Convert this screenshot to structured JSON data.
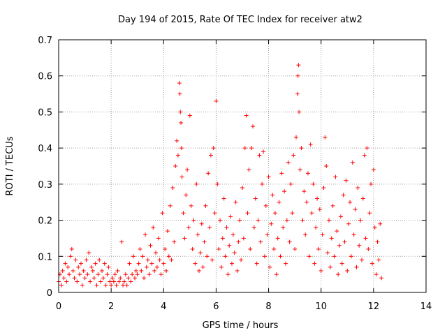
{
  "chart_data": {
    "type": "scatter",
    "title": "Day 194 of 2015, Rate Of TEC Index for receiver atw2",
    "xlabel": "GPS time / hours",
    "ylabel": "ROTI / TECUs",
    "xlim": [
      0,
      14
    ],
    "ylim": [
      0,
      0.7
    ],
    "x_ticks": [
      "0",
      "2",
      "4",
      "6",
      "8",
      "10",
      "12",
      "14"
    ],
    "y_ticks": [
      "0",
      "0.1",
      "0.2",
      "0.3",
      "0.4",
      "0.5",
      "0.6",
      "0.7"
    ],
    "x_tick_values": [
      0,
      2,
      4,
      6,
      8,
      10,
      12,
      14
    ],
    "y_tick_values": [
      0,
      0.1,
      0.2,
      0.3,
      0.4,
      0.5,
      0.6,
      0.7
    ],
    "grid": true,
    "marker": "+",
    "marker_color": "#ff0000",
    "series": [
      {
        "points": [
          [
            0.0,
            0.03
          ],
          [
            0.05,
            0.05
          ],
          [
            0.1,
            0.02
          ],
          [
            0.15,
            0.06
          ],
          [
            0.2,
            0.04
          ],
          [
            0.25,
            0.08
          ],
          [
            0.3,
            0.03
          ],
          [
            0.35,
            0.07
          ],
          [
            0.4,
            0.05
          ],
          [
            0.45,
            0.1
          ],
          [
            0.5,
            0.12
          ],
          [
            0.55,
            0.06
          ],
          [
            0.6,
            0.04
          ],
          [
            0.65,
            0.09
          ],
          [
            0.7,
            0.03
          ],
          [
            0.75,
            0.07
          ],
          [
            0.8,
            0.05
          ],
          [
            0.85,
            0.08
          ],
          [
            0.9,
            0.02
          ],
          [
            0.95,
            0.06
          ],
          [
            1.0,
            0.04
          ],
          [
            1.05,
            0.09
          ],
          [
            1.1,
            0.05
          ],
          [
            1.15,
            0.11
          ],
          [
            1.2,
            0.03
          ],
          [
            1.25,
            0.07
          ],
          [
            1.3,
            0.06
          ],
          [
            1.35,
            0.04
          ],
          [
            1.4,
            0.08
          ],
          [
            1.45,
            0.02
          ],
          [
            1.5,
            0.05
          ],
          [
            1.55,
            0.09
          ],
          [
            1.6,
            0.03
          ],
          [
            1.65,
            0.06
          ],
          [
            1.7,
            0.04
          ],
          [
            1.75,
            0.08
          ],
          [
            1.8,
            0.02
          ],
          [
            1.85,
            0.05
          ],
          [
            1.9,
            0.07
          ],
          [
            1.95,
            0.03
          ],
          [
            2.0,
            0.02
          ],
          [
            2.05,
            0.04
          ],
          [
            2.1,
            0.03
          ],
          [
            2.15,
            0.05
          ],
          [
            2.2,
            0.02
          ],
          [
            2.25,
            0.06
          ],
          [
            2.3,
            0.03
          ],
          [
            2.35,
            0.04
          ],
          [
            2.4,
            0.14
          ],
          [
            2.45,
            0.02
          ],
          [
            2.5,
            0.03
          ],
          [
            2.55,
            0.05
          ],
          [
            2.6,
            0.02
          ],
          [
            2.65,
            0.04
          ],
          [
            2.7,
            0.08
          ],
          [
            2.75,
            0.03
          ],
          [
            2.8,
            0.05
          ],
          [
            2.85,
            0.1
          ],
          [
            2.9,
            0.04
          ],
          [
            2.95,
            0.06
          ],
          [
            3.0,
            0.05
          ],
          [
            3.05,
            0.08
          ],
          [
            3.1,
            0.12
          ],
          [
            3.15,
            0.06
          ],
          [
            3.2,
            0.1
          ],
          [
            3.25,
            0.04
          ],
          [
            3.3,
            0.16
          ],
          [
            3.35,
            0.07
          ],
          [
            3.4,
            0.09
          ],
          [
            3.45,
            0.05
          ],
          [
            3.5,
            0.13
          ],
          [
            3.55,
            0.08
          ],
          [
            3.6,
            0.18
          ],
          [
            3.65,
            0.06
          ],
          [
            3.7,
            0.11
          ],
          [
            3.75,
            0.07
          ],
          [
            3.8,
            0.15
          ],
          [
            3.85,
            0.09
          ],
          [
            3.9,
            0.05
          ],
          [
            3.95,
            0.22
          ],
          [
            4.0,
            0.08
          ],
          [
            4.05,
            0.12
          ],
          [
            4.1,
            0.06
          ],
          [
            4.15,
            0.17
          ],
          [
            4.2,
            0.1
          ],
          [
            4.25,
            0.24
          ],
          [
            4.3,
            0.09
          ],
          [
            4.35,
            0.29
          ],
          [
            4.4,
            0.14
          ],
          [
            4.45,
            0.35
          ],
          [
            4.5,
            0.42
          ],
          [
            4.55,
            0.38
          ],
          [
            4.6,
            0.58
          ],
          [
            4.62,
            0.55
          ],
          [
            4.64,
            0.5
          ],
          [
            4.66,
            0.47
          ],
          [
            4.68,
            0.4
          ],
          [
            4.7,
            0.32
          ],
          [
            4.75,
            0.22
          ],
          [
            4.8,
            0.15
          ],
          [
            4.85,
            0.27
          ],
          [
            4.9,
            0.34
          ],
          [
            4.95,
            0.18
          ],
          [
            5.0,
            0.49
          ],
          [
            5.05,
            0.24
          ],
          [
            5.1,
            0.12
          ],
          [
            5.15,
            0.2
          ],
          [
            5.2,
            0.08
          ],
          [
            5.25,
            0.3
          ],
          [
            5.3,
            0.16
          ],
          [
            5.35,
            0.06
          ],
          [
            5.4,
            0.11
          ],
          [
            5.45,
            0.19
          ],
          [
            5.5,
            0.07
          ],
          [
            5.55,
            0.14
          ],
          [
            5.6,
            0.24
          ],
          [
            5.65,
            0.1
          ],
          [
            5.7,
            0.33
          ],
          [
            5.75,
            0.18
          ],
          [
            5.8,
            0.38
          ],
          [
            5.85,
            0.09
          ],
          [
            5.9,
            0.4
          ],
          [
            5.95,
            0.22
          ],
          [
            6.0,
            0.53
          ],
          [
            6.05,
            0.3
          ],
          [
            6.1,
            0.12
          ],
          [
            6.15,
            0.2
          ],
          [
            6.2,
            0.07
          ],
          [
            6.25,
            0.15
          ],
          [
            6.3,
            0.26
          ],
          [
            6.35,
            0.1
          ],
          [
            6.4,
            0.18
          ],
          [
            6.45,
            0.05
          ],
          [
            6.5,
            0.13
          ],
          [
            6.55,
            0.21
          ],
          [
            6.6,
            0.08
          ],
          [
            6.65,
            0.16
          ],
          [
            6.7,
            0.11
          ],
          [
            6.75,
            0.25
          ],
          [
            6.8,
            0.06
          ],
          [
            6.85,
            0.14
          ],
          [
            6.9,
            0.2
          ],
          [
            6.95,
            0.09
          ],
          [
            7.0,
            0.29
          ],
          [
            7.05,
            0.15
          ],
          [
            7.1,
            0.4
          ],
          [
            7.15,
            0.49
          ],
          [
            7.2,
            0.22
          ],
          [
            7.25,
            0.34
          ],
          [
            7.3,
            0.12
          ],
          [
            7.35,
            0.4
          ],
          [
            7.4,
            0.46
          ],
          [
            7.45,
            0.18
          ],
          [
            7.5,
            0.26
          ],
          [
            7.55,
            0.08
          ],
          [
            7.6,
            0.2
          ],
          [
            7.65,
            0.38
          ],
          [
            7.7,
            0.14
          ],
          [
            7.75,
            0.3
          ],
          [
            7.8,
            0.39
          ],
          [
            7.85,
            0.1
          ],
          [
            7.9,
            0.24
          ],
          [
            7.95,
            0.16
          ],
          [
            8.0,
            0.32
          ],
          [
            8.05,
            0.07
          ],
          [
            8.1,
            0.19
          ],
          [
            8.15,
            0.27
          ],
          [
            8.2,
            0.12
          ],
          [
            8.25,
            0.22
          ],
          [
            8.3,
            0.05
          ],
          [
            8.35,
            0.15
          ],
          [
            8.4,
            0.25
          ],
          [
            8.45,
            0.1
          ],
          [
            8.5,
            0.33
          ],
          [
            8.55,
            0.18
          ],
          [
            8.6,
            0.28
          ],
          [
            8.65,
            0.08
          ],
          [
            8.7,
            0.2
          ],
          [
            8.75,
            0.36
          ],
          [
            8.8,
            0.14
          ],
          [
            8.85,
            0.3
          ],
          [
            8.9,
            0.22
          ],
          [
            8.95,
            0.38
          ],
          [
            9.0,
            0.12
          ],
          [
            9.05,
            0.43
          ],
          [
            9.1,
            0.55
          ],
          [
            9.12,
            0.6
          ],
          [
            9.14,
            0.63
          ],
          [
            9.16,
            0.5
          ],
          [
            9.2,
            0.34
          ],
          [
            9.25,
            0.4
          ],
          [
            9.3,
            0.2
          ],
          [
            9.35,
            0.28
          ],
          [
            9.4,
            0.16
          ],
          [
            9.45,
            0.25
          ],
          [
            9.5,
            0.33
          ],
          [
            9.55,
            0.1
          ],
          [
            9.6,
            0.41
          ],
          [
            9.65,
            0.22
          ],
          [
            9.7,
            0.3
          ],
          [
            9.75,
            0.08
          ],
          [
            9.8,
            0.18
          ],
          [
            9.85,
            0.26
          ],
          [
            9.9,
            0.12
          ],
          [
            9.95,
            0.23
          ],
          [
            10.0,
            0.06
          ],
          [
            10.05,
            0.16
          ],
          [
            10.1,
            0.29
          ],
          [
            10.15,
            0.43
          ],
          [
            10.2,
            0.35
          ],
          [
            10.25,
            0.11
          ],
          [
            10.3,
            0.2
          ],
          [
            10.35,
            0.07
          ],
          [
            10.4,
            0.15
          ],
          [
            10.45,
            0.24
          ],
          [
            10.5,
            0.1
          ],
          [
            10.55,
            0.32
          ],
          [
            10.6,
            0.17
          ],
          [
            10.65,
            0.05
          ],
          [
            10.7,
            0.13
          ],
          [
            10.75,
            0.21
          ],
          [
            10.8,
            0.08
          ],
          [
            10.85,
            0.27
          ],
          [
            10.9,
            0.14
          ],
          [
            10.95,
            0.31
          ],
          [
            11.0,
            0.06
          ],
          [
            11.05,
            0.19
          ],
          [
            11.1,
            0.25
          ],
          [
            11.15,
            0.1
          ],
          [
            11.2,
            0.36
          ],
          [
            11.25,
            0.16
          ],
          [
            11.3,
            0.23
          ],
          [
            11.35,
            0.07
          ],
          [
            11.4,
            0.29
          ],
          [
            11.45,
            0.13
          ],
          [
            11.5,
            0.2
          ],
          [
            11.55,
            0.09
          ],
          [
            11.6,
            0.26
          ],
          [
            11.65,
            0.38
          ],
          [
            11.7,
            0.15
          ],
          [
            11.75,
            0.4
          ],
          [
            11.8,
            0.12
          ],
          [
            11.85,
            0.22
          ],
          [
            11.9,
            0.3
          ],
          [
            11.95,
            0.08
          ],
          [
            12.0,
            0.34
          ],
          [
            12.05,
            0.18
          ],
          [
            12.1,
            0.05
          ],
          [
            12.15,
            0.14
          ],
          [
            12.2,
            0.09
          ],
          [
            12.25,
            0.19
          ],
          [
            12.3,
            0.04
          ]
        ]
      }
    ]
  }
}
